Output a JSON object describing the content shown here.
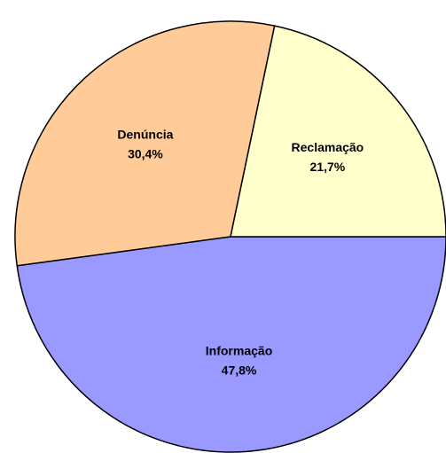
{
  "chart_data": {
    "type": "pie",
    "categories": [
      "Informação",
      "Denúncia",
      "Reclamação"
    ],
    "values": [
      47.8,
      30.4,
      21.7
    ],
    "value_labels": [
      "47,8%",
      "30,4%",
      "21,7%"
    ],
    "colors": [
      "#9999ff",
      "#ffcc99",
      "#ffffcc"
    ]
  }
}
